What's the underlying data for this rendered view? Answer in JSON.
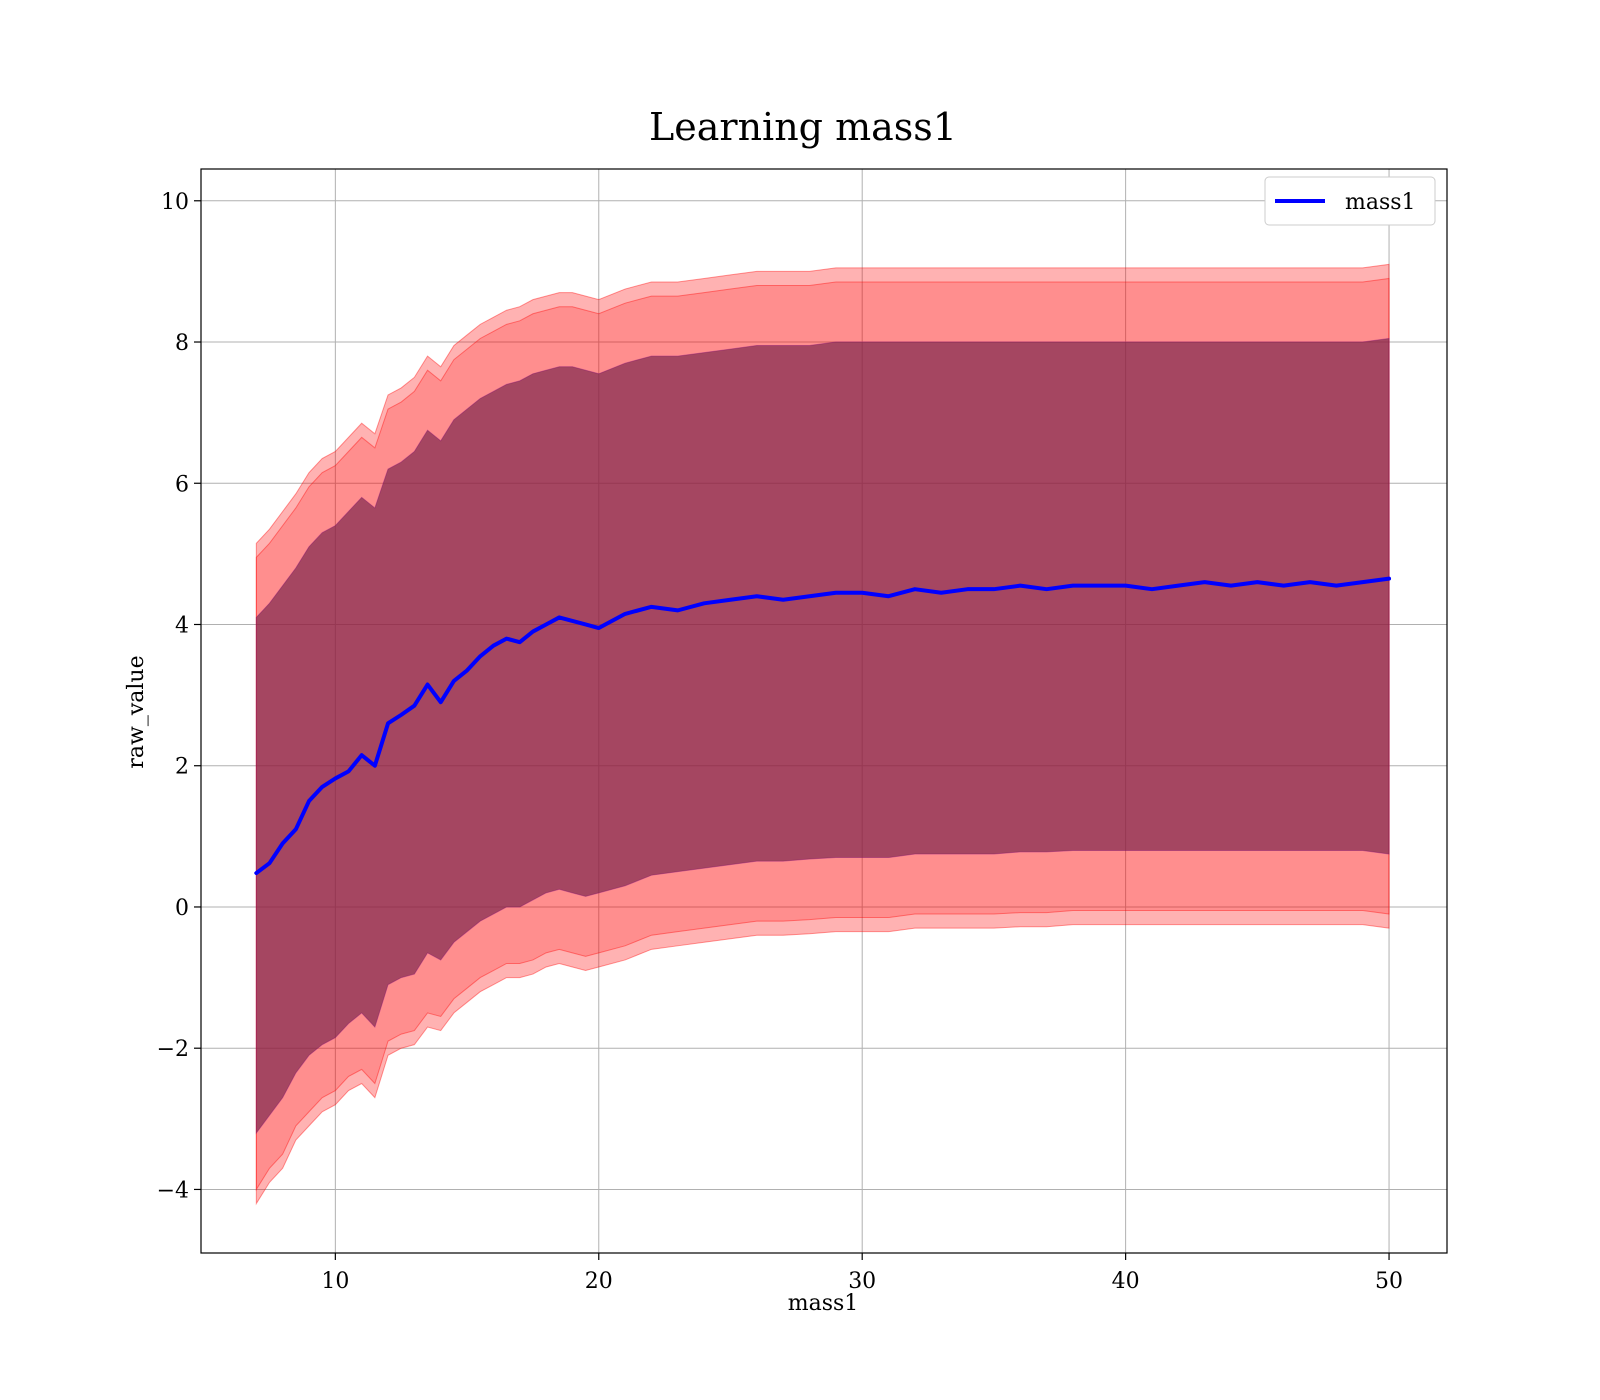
{
  "chart_data": {
    "type": "line",
    "title": "Learning mass1",
    "xlabel": "mass1",
    "ylabel": "raw_value",
    "xlim": [
      4.9,
      52.2
    ],
    "ylim": [
      -4.9,
      10.45
    ],
    "xticks": [
      10,
      20,
      30,
      40,
      50
    ],
    "yticks": [
      -4,
      -2,
      0,
      2,
      4,
      6,
      8,
      10
    ],
    "grid": true,
    "legend": {
      "position": "top-right",
      "entries": [
        "mass1"
      ]
    },
    "colors": {
      "line": "#0000ff",
      "band": "#ff0000",
      "inner_band": "#800080"
    },
    "series": [
      {
        "name": "mass1",
        "x": [
          7,
          7.5,
          8,
          8.5,
          9,
          9.5,
          10,
          10.5,
          11,
          11.5,
          12,
          12.5,
          13,
          13.5,
          14,
          14.5,
          15,
          15.5,
          16,
          16.5,
          17,
          17.5,
          18,
          18.5,
          19,
          19.5,
          20,
          21,
          22,
          23,
          24,
          25,
          26,
          27,
          28,
          29,
          30,
          31,
          32,
          33,
          34,
          35,
          36,
          37,
          38,
          39,
          40,
          41,
          42,
          43,
          44,
          45,
          46,
          47,
          48,
          49,
          50
        ],
        "y": [
          0.48,
          0.62,
          0.9,
          1.1,
          1.5,
          1.7,
          1.82,
          1.92,
          2.15,
          2.0,
          2.6,
          2.72,
          2.85,
          3.15,
          2.9,
          3.2,
          3.35,
          3.55,
          3.7,
          3.8,
          3.75,
          3.9,
          4.0,
          4.1,
          4.05,
          4.0,
          3.95,
          4.15,
          4.25,
          4.2,
          4.3,
          4.35,
          4.4,
          4.35,
          4.4,
          4.45,
          4.45,
          4.4,
          4.5,
          4.45,
          4.5,
          4.5,
          4.55,
          4.5,
          4.55,
          4.55,
          4.55,
          4.5,
          4.55,
          4.6,
          4.55,
          4.6,
          4.55,
          4.6,
          4.55,
          4.6,
          4.65
        ]
      }
    ],
    "bands": [
      {
        "x": [
          7,
          7.5,
          8,
          8.5,
          9,
          9.5,
          10,
          10.5,
          11,
          11.5,
          12,
          12.5,
          13,
          13.5,
          14,
          14.5,
          15,
          15.5,
          16,
          16.5,
          17,
          17.5,
          18,
          18.5,
          19,
          19.5,
          20,
          21,
          22,
          23,
          24,
          25,
          26,
          27,
          28,
          29,
          30,
          31,
          32,
          33,
          34,
          35,
          36,
          37,
          38,
          39,
          40,
          41,
          42,
          43,
          44,
          45,
          46,
          47,
          48,
          49,
          50
        ],
        "lower": [
          -4.2,
          -3.9,
          -3.7,
          -3.3,
          -3.1,
          -2.9,
          -2.8,
          -2.6,
          -2.5,
          -2.7,
          -2.1,
          -2.0,
          -1.95,
          -1.7,
          -1.75,
          -1.5,
          -1.35,
          -1.2,
          -1.1,
          -1.0,
          -1.0,
          -0.95,
          -0.85,
          -0.8,
          -0.85,
          -0.9,
          -0.85,
          -0.75,
          -0.6,
          -0.55,
          -0.5,
          -0.45,
          -0.4,
          -0.4,
          -0.38,
          -0.35,
          -0.35,
          -0.35,
          -0.3,
          -0.3,
          -0.3,
          -0.3,
          -0.28,
          -0.28,
          -0.25,
          -0.25,
          -0.25,
          -0.25,
          -0.25,
          -0.25,
          -0.25,
          -0.25,
          -0.25,
          -0.25,
          -0.25,
          -0.25,
          -0.3
        ],
        "upper": [
          5.15,
          5.35,
          5.6,
          5.85,
          6.15,
          6.35,
          6.45,
          6.65,
          6.85,
          6.7,
          7.25,
          7.35,
          7.5,
          7.8,
          7.65,
          7.95,
          8.1,
          8.25,
          8.35,
          8.45,
          8.5,
          8.6,
          8.65,
          8.7,
          8.7,
          8.65,
          8.6,
          8.75,
          8.85,
          8.85,
          8.9,
          8.95,
          9.0,
          9.0,
          9.0,
          9.05,
          9.05,
          9.05,
          9.05,
          9.05,
          9.05,
          9.05,
          9.05,
          9.05,
          9.05,
          9.05,
          9.05,
          9.05,
          9.05,
          9.05,
          9.05,
          9.05,
          9.05,
          9.05,
          9.05,
          9.05,
          9.1
        ]
      },
      {
        "x": [
          7,
          7.5,
          8,
          8.5,
          9,
          9.5,
          10,
          10.5,
          11,
          11.5,
          12,
          12.5,
          13,
          13.5,
          14,
          14.5,
          15,
          15.5,
          16,
          16.5,
          17,
          17.5,
          18,
          18.5,
          19,
          19.5,
          20,
          21,
          22,
          23,
          24,
          25,
          26,
          27,
          28,
          29,
          30,
          31,
          32,
          33,
          34,
          35,
          36,
          37,
          38,
          39,
          40,
          41,
          42,
          43,
          44,
          45,
          46,
          47,
          48,
          49,
          50
        ],
        "lower": [
          -4.0,
          -3.7,
          -3.5,
          -3.1,
          -2.9,
          -2.7,
          -2.6,
          -2.4,
          -2.3,
          -2.5,
          -1.9,
          -1.8,
          -1.75,
          -1.5,
          -1.55,
          -1.3,
          -1.15,
          -1.0,
          -0.9,
          -0.8,
          -0.8,
          -0.75,
          -0.65,
          -0.6,
          -0.65,
          -0.7,
          -0.65,
          -0.55,
          -0.4,
          -0.35,
          -0.3,
          -0.25,
          -0.2,
          -0.2,
          -0.18,
          -0.15,
          -0.15,
          -0.15,
          -0.1,
          -0.1,
          -0.1,
          -0.1,
          -0.08,
          -0.08,
          -0.05,
          -0.05,
          -0.05,
          -0.05,
          -0.05,
          -0.05,
          -0.05,
          -0.05,
          -0.05,
          -0.05,
          -0.05,
          -0.05,
          -0.1
        ],
        "upper": [
          4.95,
          5.15,
          5.4,
          5.65,
          5.95,
          6.15,
          6.25,
          6.45,
          6.65,
          6.5,
          7.05,
          7.15,
          7.3,
          7.6,
          7.45,
          7.75,
          7.9,
          8.05,
          8.15,
          8.25,
          8.3,
          8.4,
          8.45,
          8.5,
          8.5,
          8.45,
          8.4,
          8.55,
          8.65,
          8.65,
          8.7,
          8.75,
          8.8,
          8.8,
          8.8,
          8.85,
          8.85,
          8.85,
          8.85,
          8.85,
          8.85,
          8.85,
          8.85,
          8.85,
          8.85,
          8.85,
          8.85,
          8.85,
          8.85,
          8.85,
          8.85,
          8.85,
          8.85,
          8.85,
          8.85,
          8.85,
          8.9
        ]
      },
      {
        "x": [
          7,
          7.5,
          8,
          8.5,
          9,
          9.5,
          10,
          10.5,
          11,
          11.5,
          12,
          12.5,
          13,
          13.5,
          14,
          14.5,
          15,
          15.5,
          16,
          16.5,
          17,
          17.5,
          18,
          18.5,
          19,
          19.5,
          20,
          21,
          22,
          23,
          24,
          25,
          26,
          27,
          28,
          29,
          30,
          31,
          32,
          33,
          34,
          35,
          36,
          37,
          38,
          39,
          40,
          41,
          42,
          43,
          44,
          45,
          46,
          47,
          48,
          49,
          50
        ],
        "lower": [
          -3.2,
          -2.95,
          -2.7,
          -2.35,
          -2.1,
          -1.95,
          -1.85,
          -1.65,
          -1.5,
          -1.7,
          -1.1,
          -1.0,
          -0.95,
          -0.65,
          -0.75,
          -0.5,
          -0.35,
          -0.2,
          -0.1,
          0.0,
          0.0,
          0.1,
          0.2,
          0.25,
          0.2,
          0.15,
          0.2,
          0.3,
          0.45,
          0.5,
          0.55,
          0.6,
          0.65,
          0.65,
          0.68,
          0.7,
          0.7,
          0.7,
          0.75,
          0.75,
          0.75,
          0.75,
          0.78,
          0.78,
          0.8,
          0.8,
          0.8,
          0.8,
          0.8,
          0.8,
          0.8,
          0.8,
          0.8,
          0.8,
          0.8,
          0.8,
          0.75
        ],
        "upper": [
          4.1,
          4.3,
          4.55,
          4.8,
          5.1,
          5.3,
          5.4,
          5.6,
          5.8,
          5.65,
          6.2,
          6.3,
          6.45,
          6.75,
          6.6,
          6.9,
          7.05,
          7.2,
          7.3,
          7.4,
          7.45,
          7.55,
          7.6,
          7.65,
          7.65,
          7.6,
          7.55,
          7.7,
          7.8,
          7.8,
          7.85,
          7.9,
          7.95,
          7.95,
          7.95,
          8.0,
          8.0,
          8.0,
          8.0,
          8.0,
          8.0,
          8.0,
          8.0,
          8.0,
          8.0,
          8.0,
          8.0,
          8.0,
          8.0,
          8.0,
          8.0,
          8.0,
          8.0,
          8.0,
          8.0,
          8.0,
          8.05
        ]
      }
    ]
  }
}
